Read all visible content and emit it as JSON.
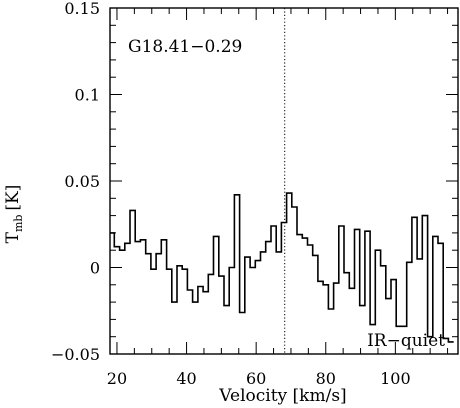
{
  "chart_data": {
    "type": "line",
    "style": "step",
    "title": "",
    "xlabel": "Velocity [km/s]",
    "ylabel_main": "T",
    "ylabel_sub": "mb",
    "ylabel_unit": "[K]",
    "xlim": [
      18,
      118
    ],
    "ylim": [
      -0.05,
      0.15
    ],
    "x_ticks": [
      20,
      40,
      60,
      80,
      100
    ],
    "x_tick_labels": [
      "20",
      "40",
      "60",
      "80",
      "100"
    ],
    "y_ticks": [
      -0.05,
      0,
      0.05,
      0.1,
      0.15
    ],
    "y_tick_labels": [
      "−0.05",
      "0",
      "0.05",
      "0.1",
      "0.15"
    ],
    "x_minor_step": 5,
    "y_minor_step": 0.01,
    "grid": false,
    "legend": "none",
    "annotations": {
      "source_name": "G18.41−0.29",
      "classification": "IR−quiet"
    },
    "reference_line": {
      "x": 68.2,
      "style": "dotted"
    },
    "series": [
      {
        "x": [
          18.5,
          20.0,
          21.5,
          23.0,
          24.5,
          26.0,
          27.5,
          29.0,
          30.5,
          32.0,
          33.5,
          35.0,
          36.5,
          38.0,
          39.5,
          41.0,
          42.5,
          44.0,
          45.5,
          47.0,
          48.5,
          50.0,
          51.5,
          53.0,
          54.5,
          56.0,
          57.5,
          59.0,
          60.5,
          62.0,
          63.5,
          65.0,
          66.5,
          68.0,
          69.5,
          71.0,
          72.5,
          74.0,
          75.5,
          77.0,
          78.5,
          80.0,
          81.5,
          83.0,
          84.5,
          86.0,
          87.5,
          89.0,
          90.5,
          92.0,
          93.5,
          95.0,
          96.5,
          98.0,
          99.5,
          101.0,
          102.5,
          104.0,
          105.5,
          107.0,
          108.5,
          110.0,
          111.5,
          113.0,
          114.5,
          116.0
        ],
        "values": [
          0.02,
          0.012,
          0.01,
          0.014,
          0.033,
          0.015,
          0.016,
          0.008,
          -0.001,
          0.008,
          0.016,
          -0.001,
          -0.02,
          0.001,
          -0.001,
          -0.013,
          -0.02,
          -0.011,
          -0.014,
          -0.004,
          0.018,
          -0.005,
          -0.022,
          0.0,
          0.042,
          -0.026,
          0.006,
          0.0,
          0.004,
          0.009,
          0.015,
          0.024,
          0.009,
          0.026,
          0.043,
          0.035,
          0.019,
          0.017,
          0.013,
          0.007,
          -0.008,
          -0.01,
          -0.024,
          -0.009,
          0.024,
          -0.003,
          -0.012,
          0.022,
          -0.022,
          0.021,
          -0.033,
          0.01,
          0.001,
          -0.018,
          -0.007,
          -0.034,
          -0.034,
          0.003,
          0.029,
          0.005,
          0.03,
          -0.04,
          0.018,
          0.014,
          -0.041,
          -0.043
        ]
      }
    ]
  }
}
